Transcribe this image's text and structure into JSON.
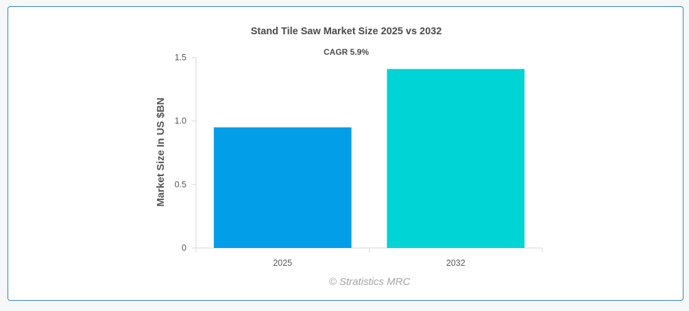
{
  "chart_data": {
    "type": "bar",
    "title": "Stand Tile Saw Market Size 2025 vs 2032",
    "subtitle": "CAGR 5.9%",
    "xlabel": "",
    "ylabel": "Market Size In US $BN",
    "categories": [
      "2025",
      "2032"
    ],
    "values": [
      0.95,
      1.41
    ],
    "colors": [
      "#039ee8",
      "#00d4d4"
    ],
    "ylim": [
      0,
      1.5
    ],
    "yticks": [
      0,
      0.5,
      1.0,
      1.5
    ],
    "ytick_labels": [
      "0",
      "0.5",
      "1.0",
      "1.5"
    ],
    "grid": false,
    "legend": "none",
    "watermark": "© Stratistics MRC"
  },
  "colors": {
    "border": "#2f7fc2",
    "axis": "#d6d6d6"
  }
}
